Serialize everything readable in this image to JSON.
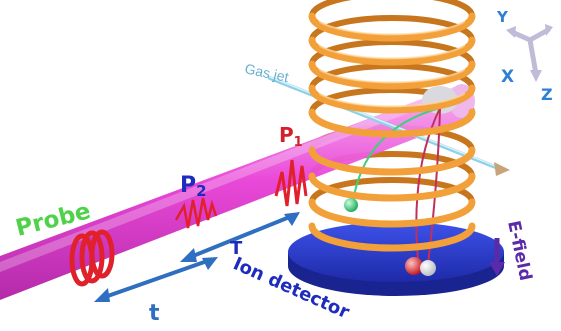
{
  "labels": {
    "probe": "Probe",
    "p2_main": "P",
    "p2_sub": "2",
    "p1_main": "P",
    "p1_sub": "1",
    "gas_jet": "Gas jet",
    "delay_T": "T",
    "delay_t": "t",
    "ion_detector": "Ion detector",
    "e_field": "E-field",
    "axis_x": "X",
    "axis_y": "Y",
    "axis_z": "Z"
  },
  "colors": {
    "beam": "#e83fd6",
    "pulse": "#e0202a",
    "coil": "#f2a03a",
    "detector": "#2b3fd1",
    "arrow_blue": "#2f6fbf",
    "gas_jet": "#8fd0e8",
    "probe_text": "#4fd14a",
    "pulse_text": "#d4202a",
    "p2_text": "#1d2bbf",
    "efield_text": "#5b2aa8",
    "axis_text": "#2e7fd6",
    "ion_green": "#3fd07a",
    "ion_red": "#e0202a"
  },
  "icons": {
    "coil": "helical-coil-icon",
    "detector": "detector-disk-icon",
    "axes": "xyz-axes-icon"
  }
}
